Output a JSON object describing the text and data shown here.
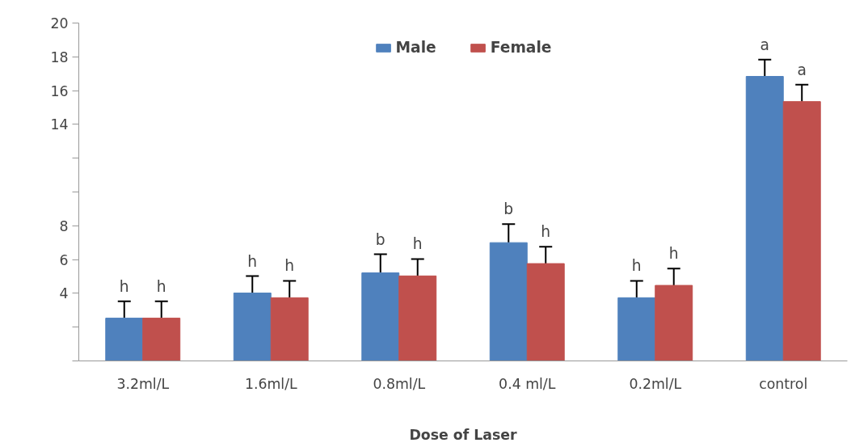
{
  "chart_data": {
    "type": "bar",
    "xlabel": "Dose of Laser",
    "categories": [
      "3.2ml/L",
      "1.6ml/L",
      "0.8ml/L",
      "0.4 ml/L",
      "0.2ml/L",
      "control"
    ],
    "series": [
      {
        "name": "Male",
        "color": "#4f81bd",
        "values": [
          2.53,
          4.02,
          5.21,
          7.0,
          3.74,
          16.84
        ],
        "errors": [
          1.0,
          1.0,
          1.1,
          1.1,
          1.0,
          1.0
        ],
        "value_labels": [
          "h",
          "h",
          "b",
          "b",
          "h",
          "a"
        ]
      },
      {
        "name": "Female",
        "color": "#c0504d",
        "values": [
          2.53,
          3.74,
          5.03,
          5.76,
          4.47,
          15.35
        ],
        "errors": [
          1.0,
          1.0,
          1.0,
          1.0,
          1.0,
          1.0
        ],
        "value_labels": [
          "h",
          "h",
          "h",
          "h",
          "h",
          "a"
        ]
      }
    ],
    "ylim": [
      0,
      20
    ],
    "yticks": [
      {
        "value": 0,
        "label": null
      },
      {
        "value": 2,
        "label": null
      },
      4,
      6,
      8,
      {
        "value": 10,
        "label": null
      },
      {
        "value": 12,
        "label": null
      },
      14,
      16,
      18,
      20
    ],
    "legend": "top",
    "grid": false
  }
}
